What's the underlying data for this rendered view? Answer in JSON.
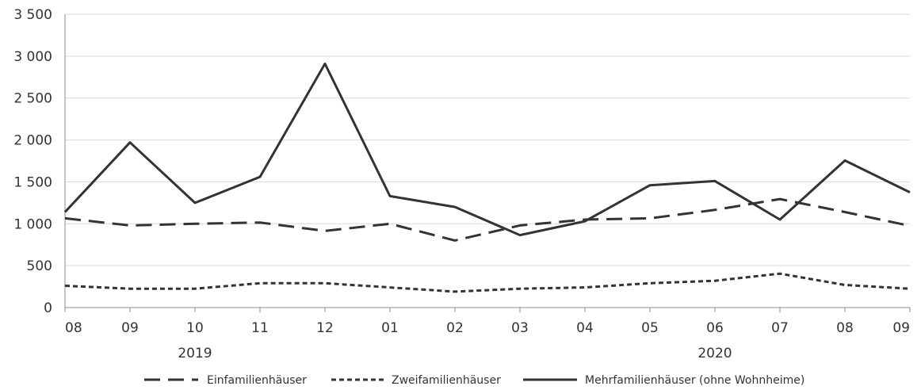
{
  "chart_data": {
    "type": "line",
    "categories": [
      "08",
      "09",
      "10",
      "11",
      "12",
      "01",
      "02",
      "03",
      "04",
      "05",
      "06",
      "07",
      "08",
      "09"
    ],
    "year_labels": [
      {
        "label": "2019",
        "center_index": 2
      },
      {
        "label": "2020",
        "center_index": 10
      }
    ],
    "series": [
      {
        "name": "Einfamilienhäuser",
        "dash": "dashed",
        "values": [
          1065,
          980,
          1000,
          1015,
          915,
          1000,
          800,
          980,
          1050,
          1065,
          1165,
          1295,
          1140,
          975
        ]
      },
      {
        "name": "Zweifamilienhäuser",
        "dash": "dotted",
        "values": [
          260,
          225,
          225,
          290,
          290,
          240,
          190,
          225,
          240,
          290,
          320,
          405,
          270,
          225
        ]
      },
      {
        "name": "Mehrfamilienhäuser (ohne Wohnheime)",
        "dash": "solid",
        "values": [
          1140,
          1970,
          1250,
          1560,
          2910,
          1330,
          1200,
          865,
          1030,
          1460,
          1510,
          1050,
          1755,
          1375
        ]
      }
    ],
    "yticks": [
      "0",
      "500",
      "1 000",
      "1 500",
      "2 000",
      "2 500",
      "3 000",
      "3 500"
    ],
    "ylim": [
      0,
      3500
    ],
    "grid": true,
    "legend_position": "bottom",
    "color": "#333333"
  }
}
